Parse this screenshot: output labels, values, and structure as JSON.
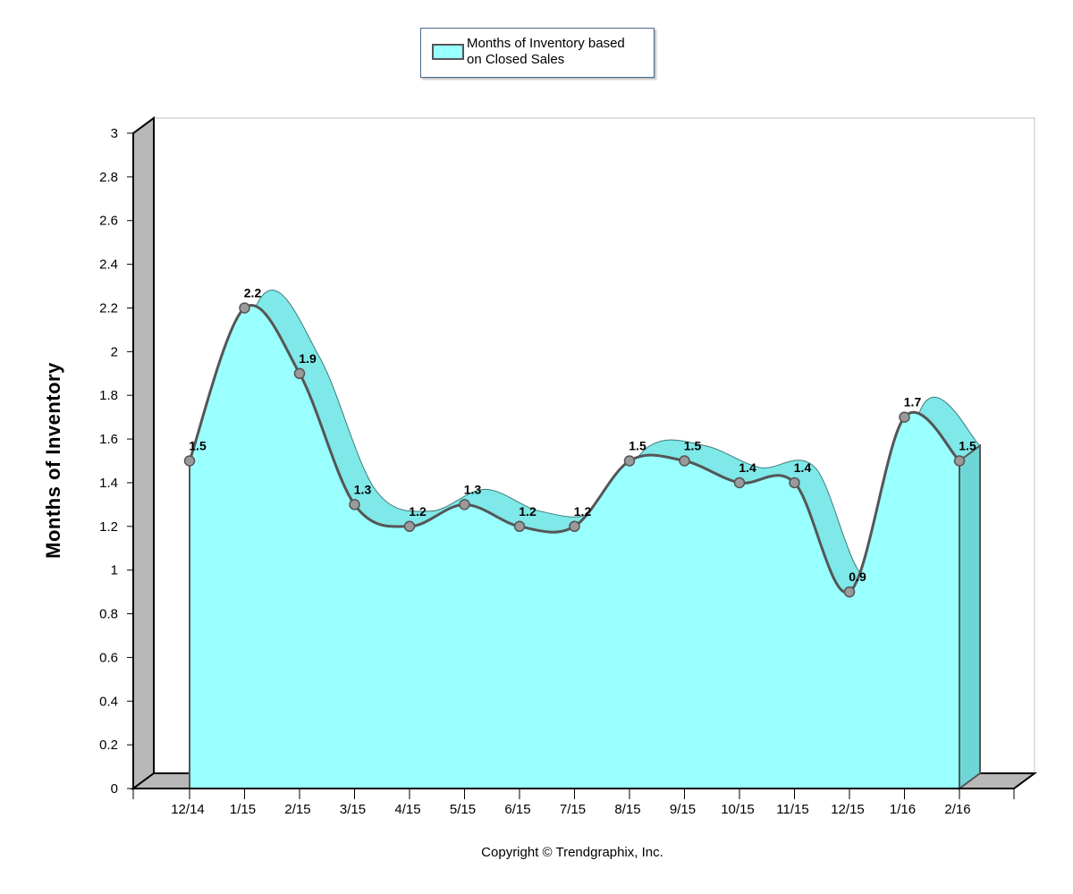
{
  "chart_data": {
    "type": "area",
    "title": "",
    "legend": {
      "label": "Months of Inventory based on Closed Sales",
      "placement": "top-center"
    },
    "categories": [
      "12/14",
      "1/15",
      "2/15",
      "3/15",
      "4/15",
      "5/15",
      "6/15",
      "7/15",
      "8/15",
      "9/15",
      "10/15",
      "11/15",
      "12/15",
      "1/16",
      "2/16"
    ],
    "series": [
      {
        "name": "Months of Inventory based on Closed Sales",
        "values": [
          1.5,
          2.2,
          1.9,
          1.3,
          1.2,
          1.3,
          1.2,
          1.2,
          1.5,
          1.5,
          1.4,
          1.4,
          0.9,
          1.7,
          1.5
        ]
      }
    ],
    "data_labels": [
      "1.5",
      "2.2",
      "1.9",
      "1.3",
      "1.2",
      "1.3",
      "1.2",
      "1.2",
      "1.5",
      "1.5",
      "1.4",
      "1.4",
      "0.9",
      "1.7",
      "1.5"
    ],
    "yticks": [
      "0",
      "0.2",
      "0.4",
      "0.6",
      "0.8",
      "1",
      "1.2",
      "1.4",
      "1.6",
      "1.8",
      "2",
      "2.2",
      "2.4",
      "2.6",
      "2.8",
      "3"
    ],
    "ylabel": "Months of Inventory",
    "xlabel": "",
    "ylim": [
      0,
      3
    ],
    "colors": {
      "fill": "#99ffff",
      "fill_top": "#7fe8e8",
      "line": "#555555",
      "marker": "#9a9a9a"
    }
  },
  "legend_lines": [
    "Months of Inventory based",
    "on Closed Sales"
  ],
  "copyright": "Copyright © Trendgraphix, Inc."
}
